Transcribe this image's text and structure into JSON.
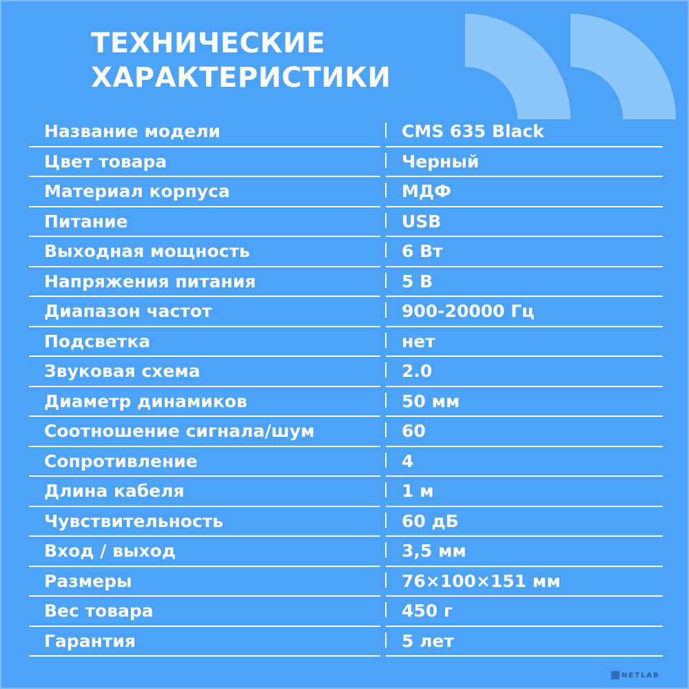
{
  "header": {
    "title_lines": [
      "ТЕХНИЧЕСКИЕ",
      "ХАРАКТЕРИСТИКИ"
    ]
  },
  "table": {
    "rows": [
      [
        "Название модели",
        "CMS 635 Black"
      ],
      [
        "Цвет товара",
        "Черный"
      ],
      [
        "Материал корпуса",
        "МДФ"
      ],
      [
        "Питание",
        "USB"
      ],
      [
        "Выходная мощность",
        "6 Вт"
      ],
      [
        "Напряжения питания",
        "5 В"
      ],
      [
        "Диапазон частот",
        "900-20000 Гц"
      ],
      [
        "Подсветка",
        "нет"
      ],
      [
        "Звуковая схема",
        "2.0"
      ],
      [
        "Диаметр динамиков",
        "50 мм"
      ],
      [
        "Соотношение сигнала/шум",
        "60"
      ],
      [
        "Сопротивление",
        "4"
      ],
      [
        "Длина кабеля",
        "1 м"
      ],
      [
        "Чувствительность",
        "60 дБ"
      ],
      [
        "Вход / выход",
        "3,5 мм"
      ],
      [
        "Размеры",
        "76×100×151 мм"
      ],
      [
        "Вес товара",
        "450 г"
      ],
      [
        "Гарантия",
        "5 лет"
      ]
    ]
  },
  "footer": {
    "logo": "NETLAB"
  }
}
